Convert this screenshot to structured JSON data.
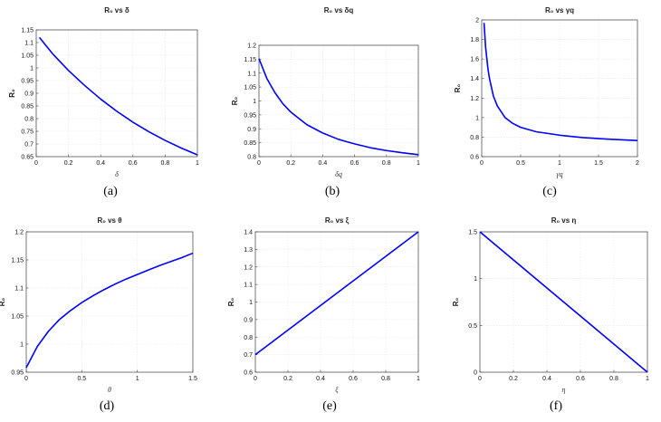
{
  "chart_data": [
    {
      "type": "line",
      "panel": "(a)",
      "title": "R₀ vs δ",
      "xlabel": "δ",
      "ylabel": "R₀",
      "xlim": [
        0,
        1
      ],
      "ylim": [
        0.65,
        1.15
      ],
      "xticks": [
        0,
        0.2,
        0.4,
        0.6,
        0.8,
        1
      ],
      "yticks": [
        0.65,
        0.7,
        0.75,
        0.8,
        0.85,
        0.9,
        0.95,
        1,
        1.05,
        1.1,
        1.15
      ],
      "grid": true,
      "color": "#0000ff",
      "x": [
        0.02,
        0.1,
        0.2,
        0.3,
        0.4,
        0.5,
        0.6,
        0.7,
        0.8,
        0.9,
        1.0
      ],
      "y": [
        1.12,
        1.057,
        0.99,
        0.931,
        0.877,
        0.829,
        0.786,
        0.748,
        0.714,
        0.684,
        0.657
      ]
    },
    {
      "type": "line",
      "panel": "(b)",
      "title": "R₀ vs δq",
      "xlabel": "δq",
      "ylabel": "R₀",
      "xlim": [
        0,
        1
      ],
      "ylim": [
        0.8,
        1.2
      ],
      "xticks": [
        0,
        0.2,
        0.4,
        0.6,
        0.8,
        1
      ],
      "yticks": [
        0.8,
        0.85,
        0.9,
        0.95,
        1,
        1.05,
        1.1,
        1.15,
        1.2
      ],
      "grid": true,
      "color": "#0000ff",
      "x": [
        0.0,
        0.05,
        0.1,
        0.15,
        0.2,
        0.3,
        0.4,
        0.5,
        0.6,
        0.7,
        0.8,
        0.9,
        1.0
      ],
      "y": [
        1.152,
        1.08,
        1.03,
        0.99,
        0.96,
        0.915,
        0.885,
        0.862,
        0.846,
        0.832,
        0.822,
        0.814,
        0.807
      ]
    },
    {
      "type": "line",
      "panel": "(c)",
      "title": "R₀ vs γq",
      "xlabel": "γq",
      "ylabel": "R₀",
      "xlim": [
        0,
        2
      ],
      "ylim": [
        0.6,
        2
      ],
      "xticks": [
        0,
        0.5,
        1,
        1.5,
        2
      ],
      "yticks": [
        0.6,
        0.8,
        1,
        1.2,
        1.4,
        1.6,
        1.8,
        2
      ],
      "grid": true,
      "color": "#0000ff",
      "x": [
        0.03,
        0.05,
        0.08,
        0.1,
        0.15,
        0.2,
        0.3,
        0.4,
        0.5,
        0.7,
        1.0,
        1.3,
        1.6,
        2.0
      ],
      "y": [
        1.97,
        1.72,
        1.5,
        1.4,
        1.22,
        1.12,
        1.0,
        0.94,
        0.9,
        0.855,
        0.82,
        0.795,
        0.78,
        0.765
      ]
    },
    {
      "type": "line",
      "panel": "(d)",
      "title": "R₀ vs θ",
      "xlabel": "θ",
      "ylabel": "R₀",
      "xlim": [
        0,
        1.5
      ],
      "ylim": [
        0.95,
        1.2
      ],
      "xticks": [
        0,
        0.5,
        1,
        1.5
      ],
      "yticks": [
        0.95,
        1,
        1.05,
        1.1,
        1.15,
        1.2
      ],
      "grid": true,
      "color": "#0000ff",
      "x": [
        0.0,
        0.1,
        0.2,
        0.3,
        0.4,
        0.5,
        0.6,
        0.7,
        0.8,
        0.9,
        1.0,
        1.1,
        1.2,
        1.3,
        1.4,
        1.5
      ],
      "y": [
        0.958,
        0.996,
        1.023,
        1.044,
        1.06,
        1.074,
        1.086,
        1.097,
        1.107,
        1.116,
        1.124,
        1.132,
        1.14,
        1.147,
        1.154,
        1.162
      ]
    },
    {
      "type": "line",
      "panel": "(e)",
      "title": "R₀ vs ξ",
      "xlabel": "ξ",
      "ylabel": "R₀",
      "xlim": [
        0,
        1
      ],
      "ylim": [
        0.6,
        1.4
      ],
      "xticks": [
        0,
        0.2,
        0.4,
        0.6,
        0.8,
        1
      ],
      "yticks": [
        0.6,
        0.7,
        0.8,
        0.9,
        1,
        1.1,
        1.2,
        1.3,
        1.4
      ],
      "grid": true,
      "color": "#0000ff",
      "x": [
        0.0,
        1.0
      ],
      "y": [
        0.7,
        1.4
      ]
    },
    {
      "type": "line",
      "panel": "(f)",
      "title": "R₀ vs η",
      "xlabel": "η",
      "ylabel": "R₀",
      "xlim": [
        0,
        1
      ],
      "ylim": [
        0,
        1.5
      ],
      "xticks": [
        0,
        0.2,
        0.4,
        0.6,
        0.8,
        1
      ],
      "yticks": [
        0,
        0.5,
        1,
        1.5
      ],
      "grid": true,
      "color": "#0000ff",
      "x": [
        0.0,
        1.0
      ],
      "y": [
        1.5,
        0.0
      ]
    }
  ]
}
